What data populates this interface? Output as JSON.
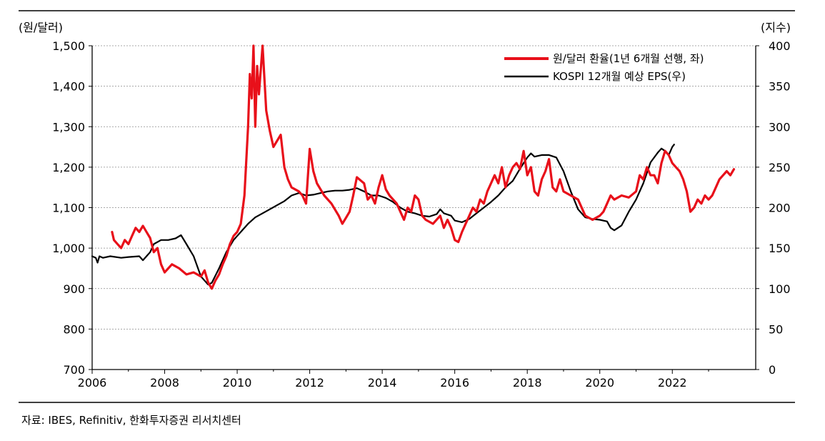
{
  "source": "자료: IBES, Refinitiv, 한화투자증권 리서치센터",
  "colors": {
    "fx": "#e8101a",
    "eps": "#000000",
    "grid": "#8c8c8c"
  },
  "chart_data": {
    "type": "line",
    "grid": "horizontal dashed",
    "legend_position": "top-right",
    "x": {
      "unit": "year",
      "range": [
        2006,
        2024.3
      ],
      "ticks": [
        2006,
        2008,
        2010,
        2012,
        2014,
        2016,
        2018,
        2020,
        2022
      ],
      "tick_labels": [
        "2006",
        "2008",
        "2010",
        "2012",
        "2014",
        "2016",
        "2018",
        "2020",
        "2022"
      ]
    },
    "y_left": {
      "unit_label": "(원/달러)",
      "range": [
        700,
        1500
      ],
      "ticks": [
        700,
        800,
        900,
        1000,
        1100,
        1200,
        1300,
        1400,
        1500
      ],
      "tick_labels": [
        "700",
        "800",
        "900",
        "1,000",
        "1,100",
        "1,200",
        "1,300",
        "1,400",
        "1,500"
      ]
    },
    "y_right": {
      "unit_label": "(지수)",
      "range": [
        0,
        400
      ],
      "ticks": [
        0,
        50,
        100,
        150,
        200,
        250,
        300,
        350,
        400
      ],
      "tick_labels": [
        "0",
        "50",
        "100",
        "150",
        "200",
        "250",
        "300",
        "350",
        "400"
      ]
    },
    "series": [
      {
        "name": "원/달러 환율(1년 6개월 선행, 좌)",
        "axis": "left",
        "color": "#e8101a",
        "points": [
          [
            2006.55,
            1040
          ],
          [
            2006.6,
            1020
          ],
          [
            2006.7,
            1010
          ],
          [
            2006.8,
            1000
          ],
          [
            2006.9,
            1020
          ],
          [
            2007.0,
            1010
          ],
          [
            2007.1,
            1030
          ],
          [
            2007.2,
            1050
          ],
          [
            2007.3,
            1040
          ],
          [
            2007.4,
            1055
          ],
          [
            2007.5,
            1040
          ],
          [
            2007.6,
            1025
          ],
          [
            2007.7,
            990
          ],
          [
            2007.8,
            1000
          ],
          [
            2007.9,
            960
          ],
          [
            2008.0,
            940
          ],
          [
            2008.2,
            960
          ],
          [
            2008.4,
            950
          ],
          [
            2008.6,
            935
          ],
          [
            2008.8,
            940
          ],
          [
            2009.0,
            930
          ],
          [
            2009.1,
            945
          ],
          [
            2009.2,
            915
          ],
          [
            2009.3,
            900
          ],
          [
            2009.4,
            920
          ],
          [
            2009.5,
            935
          ],
          [
            2009.6,
            960
          ],
          [
            2009.7,
            980
          ],
          [
            2009.8,
            1010
          ],
          [
            2009.9,
            1030
          ],
          [
            2010.0,
            1040
          ],
          [
            2010.1,
            1060
          ],
          [
            2010.2,
            1130
          ],
          [
            2010.3,
            1300
          ],
          [
            2010.35,
            1430
          ],
          [
            2010.4,
            1370
          ],
          [
            2010.45,
            1500
          ],
          [
            2010.5,
            1300
          ],
          [
            2010.55,
            1450
          ],
          [
            2010.6,
            1380
          ],
          [
            2010.7,
            1500
          ],
          [
            2010.8,
            1340
          ],
          [
            2010.9,
            1290
          ],
          [
            2011.0,
            1250
          ],
          [
            2011.2,
            1280
          ],
          [
            2011.3,
            1200
          ],
          [
            2011.4,
            1170
          ],
          [
            2011.5,
            1150
          ],
          [
            2011.7,
            1140
          ],
          [
            2011.8,
            1130
          ],
          [
            2011.9,
            1110
          ],
          [
            2012.0,
            1245
          ],
          [
            2012.1,
            1190
          ],
          [
            2012.2,
            1160
          ],
          [
            2012.4,
            1130
          ],
          [
            2012.6,
            1110
          ],
          [
            2012.8,
            1080
          ],
          [
            2012.9,
            1060
          ],
          [
            2013.0,
            1075
          ],
          [
            2013.1,
            1090
          ],
          [
            2013.2,
            1130
          ],
          [
            2013.3,
            1175
          ],
          [
            2013.5,
            1160
          ],
          [
            2013.6,
            1120
          ],
          [
            2013.7,
            1130
          ],
          [
            2013.8,
            1110
          ],
          [
            2013.9,
            1150
          ],
          [
            2014.0,
            1180
          ],
          [
            2014.1,
            1145
          ],
          [
            2014.2,
            1130
          ],
          [
            2014.4,
            1110
          ],
          [
            2014.5,
            1090
          ],
          [
            2014.6,
            1070
          ],
          [
            2014.7,
            1100
          ],
          [
            2014.8,
            1090
          ],
          [
            2014.9,
            1130
          ],
          [
            2015.0,
            1120
          ],
          [
            2015.1,
            1080
          ],
          [
            2015.2,
            1070
          ],
          [
            2015.4,
            1060
          ],
          [
            2015.6,
            1080
          ],
          [
            2015.7,
            1050
          ],
          [
            2015.8,
            1070
          ],
          [
            2015.9,
            1050
          ],
          [
            2016.0,
            1020
          ],
          [
            2016.1,
            1015
          ],
          [
            2016.2,
            1040
          ],
          [
            2016.3,
            1060
          ],
          [
            2016.4,
            1080
          ],
          [
            2016.5,
            1100
          ],
          [
            2016.6,
            1090
          ],
          [
            2016.7,
            1120
          ],
          [
            2016.8,
            1110
          ],
          [
            2016.9,
            1140
          ],
          [
            2017.0,
            1160
          ],
          [
            2017.1,
            1180
          ],
          [
            2017.2,
            1160
          ],
          [
            2017.3,
            1200
          ],
          [
            2017.4,
            1150
          ],
          [
            2017.5,
            1180
          ],
          [
            2017.6,
            1200
          ],
          [
            2017.7,
            1210
          ],
          [
            2017.8,
            1195
          ],
          [
            2017.9,
            1240
          ],
          [
            2018.0,
            1180
          ],
          [
            2018.1,
            1200
          ],
          [
            2018.2,
            1140
          ],
          [
            2018.3,
            1130
          ],
          [
            2018.4,
            1170
          ],
          [
            2018.5,
            1190
          ],
          [
            2018.6,
            1220
          ],
          [
            2018.7,
            1150
          ],
          [
            2018.8,
            1140
          ],
          [
            2018.9,
            1170
          ],
          [
            2019.0,
            1140
          ],
          [
            2019.2,
            1130
          ],
          [
            2019.4,
            1120
          ],
          [
            2019.6,
            1080
          ],
          [
            2019.8,
            1070
          ],
          [
            2020.0,
            1080
          ],
          [
            2020.1,
            1090
          ],
          [
            2020.2,
            1110
          ],
          [
            2020.3,
            1130
          ],
          [
            2020.4,
            1120
          ],
          [
            2020.6,
            1130
          ],
          [
            2020.8,
            1125
          ],
          [
            2021.0,
            1140
          ],
          [
            2021.1,
            1180
          ],
          [
            2021.2,
            1170
          ],
          [
            2021.3,
            1200
          ],
          [
            2021.4,
            1180
          ],
          [
            2021.5,
            1180
          ],
          [
            2021.6,
            1160
          ],
          [
            2021.7,
            1210
          ],
          [
            2021.8,
            1240
          ],
          [
            2021.9,
            1230
          ],
          [
            2022.0,
            1210
          ],
          [
            2022.1,
            1200
          ],
          [
            2022.2,
            1190
          ],
          [
            2022.3,
            1170
          ],
          [
            2022.4,
            1140
          ],
          [
            2022.5,
            1090
          ],
          [
            2022.6,
            1100
          ],
          [
            2022.7,
            1120
          ],
          [
            2022.8,
            1110
          ],
          [
            2022.9,
            1130
          ],
          [
            2023.0,
            1120
          ],
          [
            2023.1,
            1130
          ],
          [
            2023.2,
            1150
          ],
          [
            2023.3,
            1170
          ],
          [
            2023.4,
            1180
          ],
          [
            2023.5,
            1190
          ],
          [
            2023.6,
            1180
          ],
          [
            2023.7,
            1195
          ]
        ]
      },
      {
        "name": "KOSPI 12개월 예상 EPS(우)",
        "axis": "right",
        "color": "#000000",
        "points": [
          [
            2006.0,
            140
          ],
          [
            2006.1,
            138
          ],
          [
            2006.15,
            132
          ],
          [
            2006.2,
            140
          ],
          [
            2006.3,
            138
          ],
          [
            2006.5,
            140
          ],
          [
            2006.8,
            138
          ],
          [
            2007.0,
            139
          ],
          [
            2007.3,
            140
          ],
          [
            2007.4,
            135
          ],
          [
            2007.5,
            140
          ],
          [
            2007.6,
            145
          ],
          [
            2007.7,
            155
          ],
          [
            2007.9,
            160
          ],
          [
            2008.1,
            160
          ],
          [
            2008.3,
            162
          ],
          [
            2008.45,
            166
          ],
          [
            2008.6,
            155
          ],
          [
            2008.8,
            140
          ],
          [
            2009.0,
            115
          ],
          [
            2009.2,
            105
          ],
          [
            2009.3,
            107
          ],
          [
            2009.5,
            125
          ],
          [
            2009.7,
            145
          ],
          [
            2009.9,
            160
          ],
          [
            2010.1,
            170
          ],
          [
            2010.3,
            180
          ],
          [
            2010.5,
            188
          ],
          [
            2010.7,
            193
          ],
          [
            2010.9,
            198
          ],
          [
            2011.1,
            203
          ],
          [
            2011.3,
            208
          ],
          [
            2011.5,
            215
          ],
          [
            2011.7,
            218
          ],
          [
            2011.9,
            215
          ],
          [
            2012.1,
            216
          ],
          [
            2012.3,
            218
          ],
          [
            2012.5,
            220
          ],
          [
            2012.7,
            221
          ],
          [
            2012.9,
            221
          ],
          [
            2013.1,
            222
          ],
          [
            2013.3,
            224
          ],
          [
            2013.5,
            220
          ],
          [
            2013.7,
            215
          ],
          [
            2013.9,
            215
          ],
          [
            2014.1,
            212
          ],
          [
            2014.3,
            207
          ],
          [
            2014.5,
            200
          ],
          [
            2014.7,
            195
          ],
          [
            2014.9,
            193
          ],
          [
            2015.1,
            190
          ],
          [
            2015.3,
            189
          ],
          [
            2015.5,
            192
          ],
          [
            2015.6,
            198
          ],
          [
            2015.7,
            193
          ],
          [
            2015.9,
            190
          ],
          [
            2016.0,
            184
          ],
          [
            2016.2,
            182
          ],
          [
            2016.4,
            186
          ],
          [
            2016.6,
            193
          ],
          [
            2016.8,
            200
          ],
          [
            2017.0,
            207
          ],
          [
            2017.2,
            215
          ],
          [
            2017.4,
            225
          ],
          [
            2017.6,
            233
          ],
          [
            2017.8,
            248
          ],
          [
            2018.0,
            262
          ],
          [
            2018.1,
            267
          ],
          [
            2018.2,
            263
          ],
          [
            2018.4,
            265
          ],
          [
            2018.6,
            265
          ],
          [
            2018.8,
            262
          ],
          [
            2019.0,
            245
          ],
          [
            2019.2,
            220
          ],
          [
            2019.4,
            198
          ],
          [
            2019.6,
            188
          ],
          [
            2019.8,
            186
          ],
          [
            2020.0,
            185
          ],
          [
            2020.2,
            183
          ],
          [
            2020.3,
            175
          ],
          [
            2020.4,
            172
          ],
          [
            2020.6,
            178
          ],
          [
            2020.8,
            195
          ],
          [
            2021.0,
            210
          ],
          [
            2021.2,
            230
          ],
          [
            2021.4,
            256
          ],
          [
            2021.6,
            268
          ],
          [
            2021.7,
            273
          ],
          [
            2021.8,
            270
          ],
          [
            2021.9,
            265
          ],
          [
            2022.0,
            275
          ],
          [
            2022.05,
            278
          ]
        ]
      }
    ]
  }
}
